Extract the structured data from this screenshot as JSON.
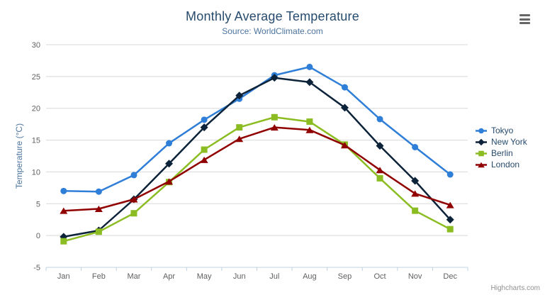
{
  "chart_data": {
    "type": "line",
    "title": "Monthly Average Temperature",
    "subtitle": "Source: WorldClimate.com",
    "xlabel": "",
    "ylabel": "Temperature (°C)",
    "categories": [
      "Jan",
      "Feb",
      "Mar",
      "Apr",
      "May",
      "Jun",
      "Jul",
      "Aug",
      "Sep",
      "Oct",
      "Nov",
      "Dec"
    ],
    "y_ticks": [
      -5,
      0,
      5,
      10,
      15,
      20,
      25,
      30
    ],
    "ylim": [
      -5,
      30
    ],
    "grid": true,
    "legend_position": "right",
    "series": [
      {
        "name": "Tokyo",
        "color": "#2f7ed8",
        "marker": "circle",
        "values": [
          7.0,
          6.9,
          9.5,
          14.5,
          18.2,
          21.5,
          25.2,
          26.5,
          23.3,
          18.3,
          13.9,
          9.6
        ]
      },
      {
        "name": "New York",
        "color": "#0d233a",
        "marker": "diamond",
        "values": [
          -0.2,
          0.8,
          5.7,
          11.3,
          17.0,
          22.0,
          24.8,
          24.1,
          20.1,
          14.1,
          8.6,
          2.5
        ]
      },
      {
        "name": "Berlin",
        "color": "#8bbc21",
        "marker": "square",
        "values": [
          -0.9,
          0.6,
          3.5,
          8.4,
          13.5,
          17.0,
          18.6,
          17.9,
          14.3,
          9.0,
          3.9,
          1.0
        ]
      },
      {
        "name": "London",
        "color": "#910000",
        "marker": "triangle",
        "values": [
          3.9,
          4.2,
          5.7,
          8.5,
          11.9,
          15.2,
          17.0,
          16.6,
          14.2,
          10.3,
          6.6,
          4.8
        ]
      }
    ]
  },
  "credits": {
    "label": "Highcharts.com"
  },
  "context_menu": {
    "icon": "hamburger-icon"
  },
  "theme": {
    "background": "#ffffff",
    "title_color": "#274b6d",
    "subtitle_color": "#4d759e",
    "axis_title_color": "#4d759e",
    "axis_label_color": "#606060",
    "grid_color": "#d8d8d8",
    "axis_line_color": "#c0d0e0",
    "legend_text_color": "#274b6d",
    "credits_color": "#909090",
    "menu_icon_color": "#666666"
  }
}
